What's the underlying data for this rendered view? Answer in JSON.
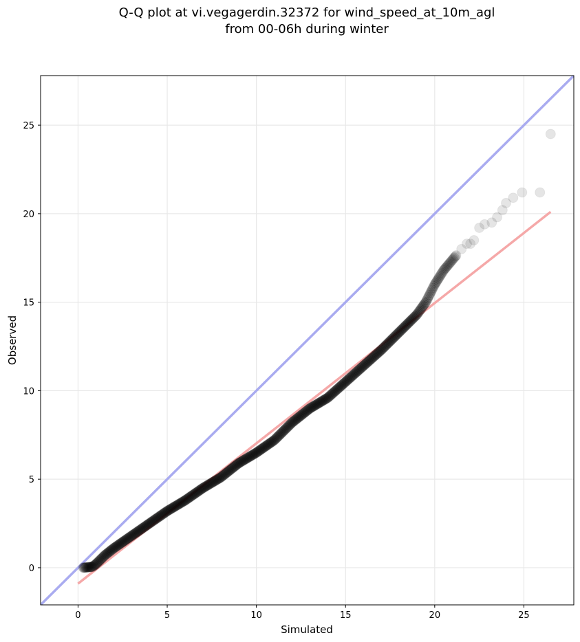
{
  "chart_data": {
    "type": "scatter",
    "title_line1": "Q-Q plot at vi.vegagerdin.32372 for wind_speed_at_10m_agl",
    "title_line2": "from 00-06h during winter",
    "xlabel": "Simulated",
    "ylabel": "Observed",
    "xlim": [
      -2.1,
      27.8
    ],
    "ylim": [
      -2.1,
      27.8
    ],
    "xticks": [
      0,
      5,
      10,
      15,
      20,
      25
    ],
    "yticks": [
      0,
      5,
      10,
      15,
      20,
      25
    ],
    "grid": true,
    "reference_line": {
      "name": "1:1",
      "color": "#a9abf0",
      "points": [
        [
          -2.1,
          -2.1
        ],
        [
          27.8,
          27.8
        ]
      ]
    },
    "fit_line": {
      "color": "#f5a8a8",
      "points": [
        [
          0.0,
          -0.9
        ],
        [
          26.5,
          20.1
        ]
      ]
    },
    "point_color": "#000000",
    "quantile_curve": [
      [
        0.3,
        0.0
      ],
      [
        0.8,
        0.05
      ],
      [
        1.0,
        0.2
      ],
      [
        1.5,
        0.7
      ],
      [
        2.0,
        1.1
      ],
      [
        3.0,
        1.8
      ],
      [
        4.0,
        2.5
      ],
      [
        5.0,
        3.2
      ],
      [
        6.0,
        3.8
      ],
      [
        7.0,
        4.5
      ],
      [
        8.0,
        5.1
      ],
      [
        9.0,
        5.9
      ],
      [
        10.0,
        6.5
      ],
      [
        11.0,
        7.2
      ],
      [
        12.0,
        8.2
      ],
      [
        13.0,
        9.0
      ],
      [
        14.0,
        9.6
      ],
      [
        15.0,
        10.5
      ],
      [
        16.0,
        11.4
      ],
      [
        17.0,
        12.3
      ],
      [
        18.0,
        13.3
      ],
      [
        19.0,
        14.3
      ],
      [
        19.5,
        15.0
      ],
      [
        20.0,
        16.0
      ],
      [
        20.5,
        16.8
      ],
      [
        21.0,
        17.4
      ],
      [
        21.5,
        18.0
      ],
      [
        22.0,
        18.3
      ],
      [
        22.5,
        18.9
      ],
      [
        23.0,
        19.4
      ],
      [
        23.5,
        19.8
      ],
      [
        24.0,
        20.5
      ],
      [
        24.5,
        20.9
      ],
      [
        25.0,
        21.2
      ],
      [
        26.0,
        21.2
      ],
      [
        26.5,
        24.5
      ]
    ],
    "tail_points": [
      [
        21.5,
        18.0
      ],
      [
        21.8,
        18.3
      ],
      [
        22.0,
        18.3
      ],
      [
        22.2,
        18.5
      ],
      [
        22.5,
        19.2
      ],
      [
        22.8,
        19.4
      ],
      [
        23.2,
        19.5
      ],
      [
        23.5,
        19.8
      ],
      [
        23.8,
        20.2
      ],
      [
        24.0,
        20.6
      ],
      [
        24.4,
        20.9
      ],
      [
        24.9,
        21.2
      ],
      [
        25.9,
        21.2
      ],
      [
        26.5,
        24.5
      ]
    ]
  }
}
